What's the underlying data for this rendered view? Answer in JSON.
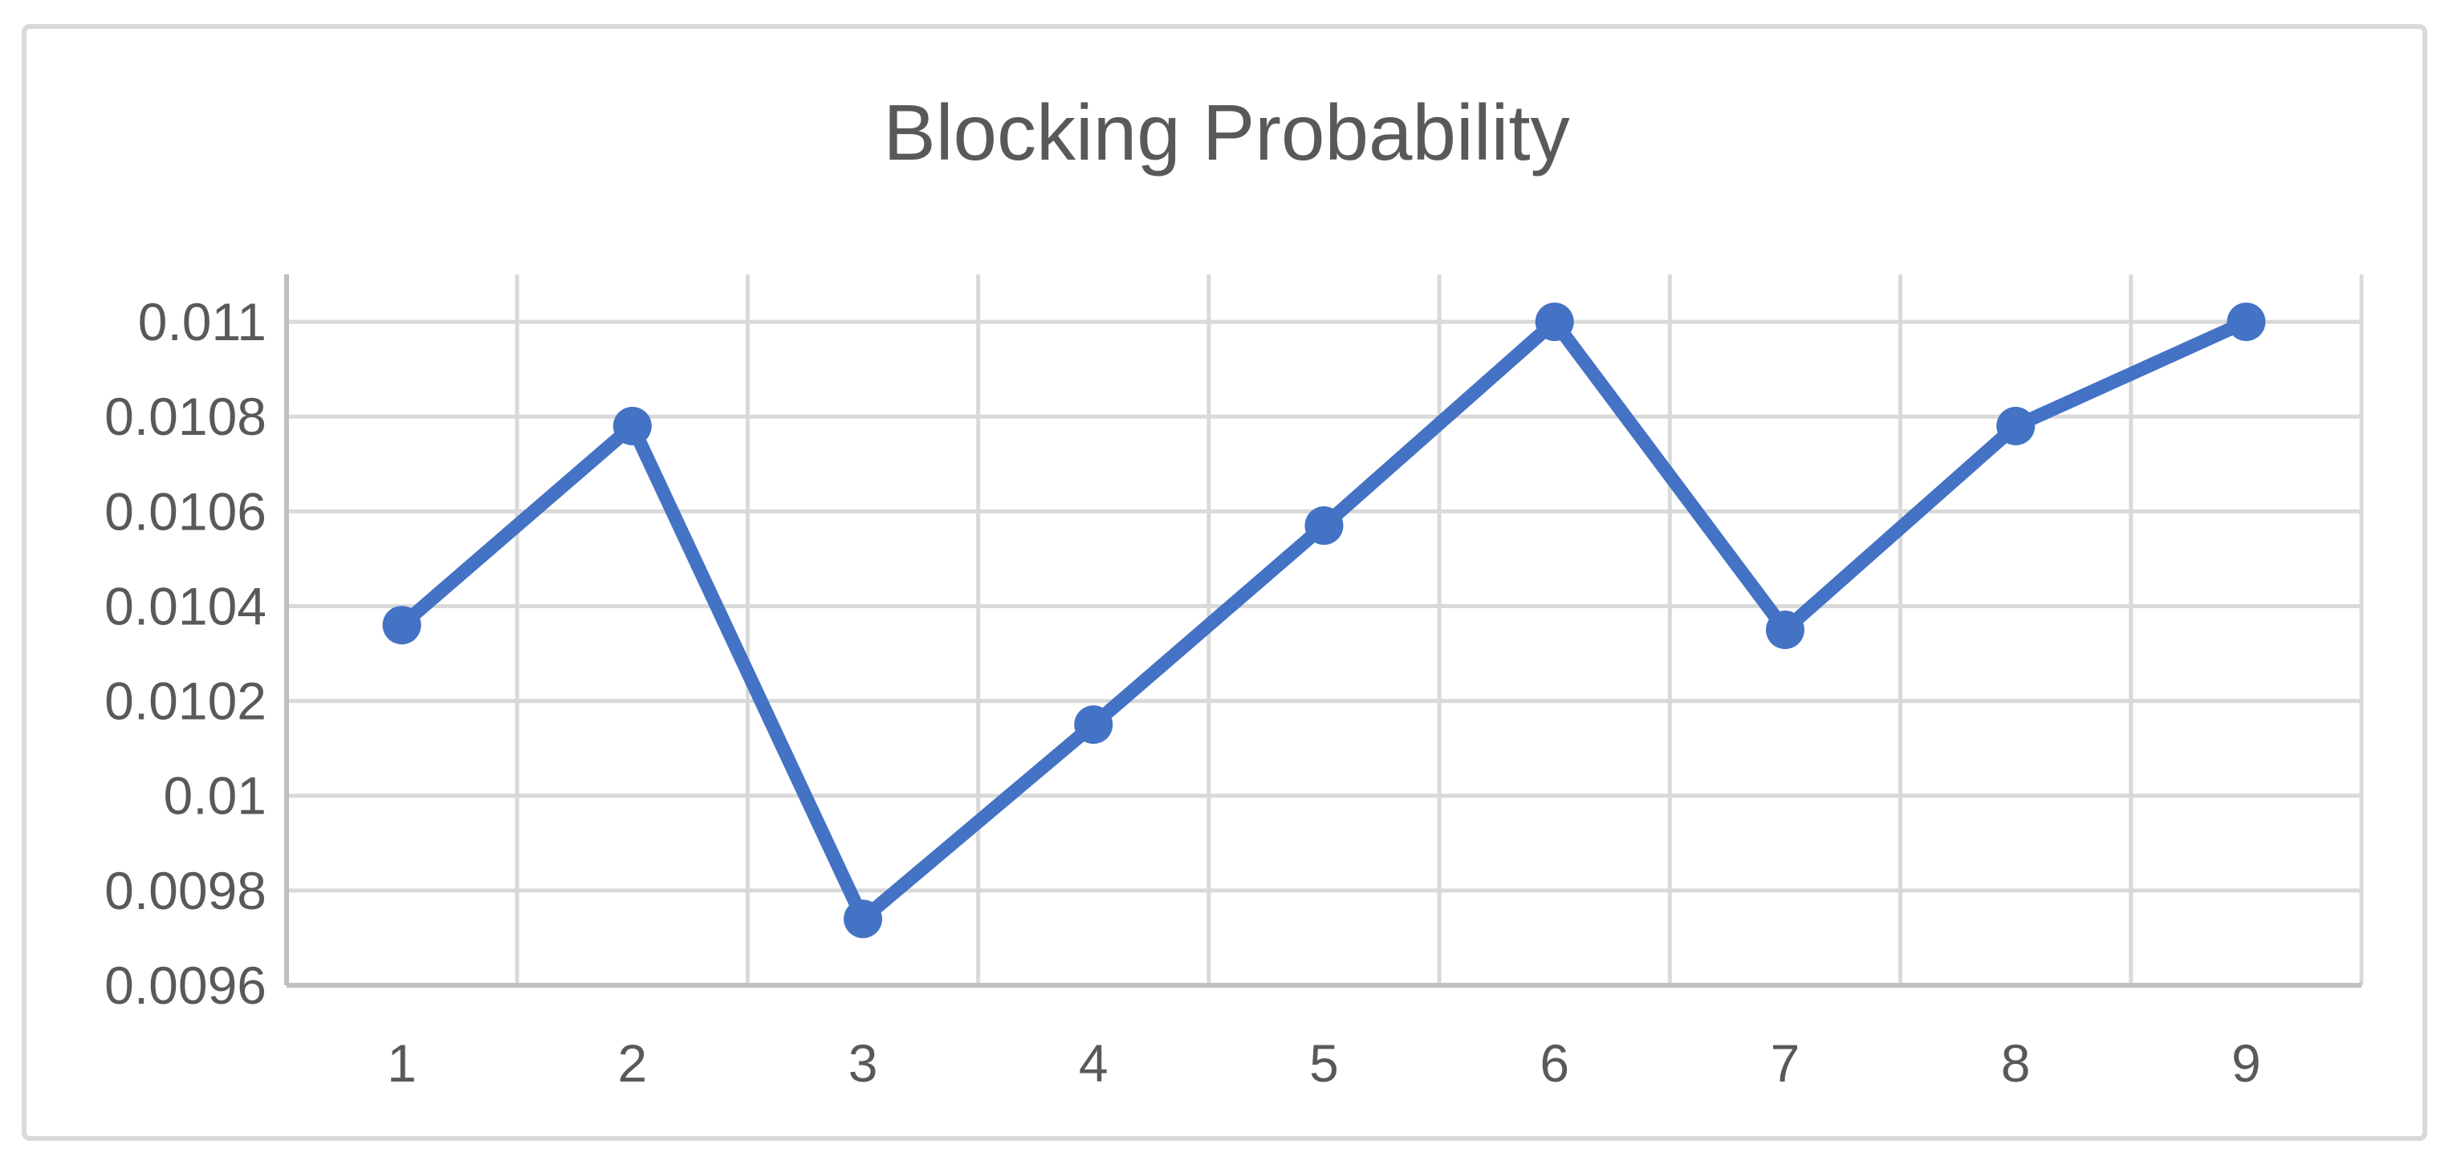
{
  "page": {
    "background": "#FFFFFF"
  },
  "chart_data": {
    "type": "line",
    "title": "Blocking Probability",
    "categories": [
      "1",
      "2",
      "3",
      "4",
      "5",
      "6",
      "7",
      "8",
      "9"
    ],
    "series": [
      {
        "name": "Blocking Probability",
        "values": [
          0.01036,
          0.01078,
          0.00974,
          0.01015,
          0.01057,
          0.011,
          0.01035,
          0.01078,
          0.011
        ]
      }
    ],
    "xlabel": "",
    "ylabel": "",
    "ylim": [
      0.0096,
      0.0111
    ],
    "yticks": {
      "values": [
        0.0096,
        0.0098,
        0.01,
        0.0102,
        0.0104,
        0.0106,
        0.0108,
        0.011
      ],
      "labels": [
        "0.0096",
        "0.0098",
        "0.01",
        "0.0102",
        "0.0104",
        "0.0106",
        "0.0108",
        "0.011"
      ]
    },
    "grid": "horizontal-and-vertical",
    "legend": "none",
    "marker": "circle",
    "colors": {
      "series": "#4472C4",
      "gridline": "#D9D9D9",
      "axis": "#BFBFBF",
      "text": "#595959",
      "chart_border": "#D9D9D9",
      "background": "#FFFFFF"
    }
  }
}
